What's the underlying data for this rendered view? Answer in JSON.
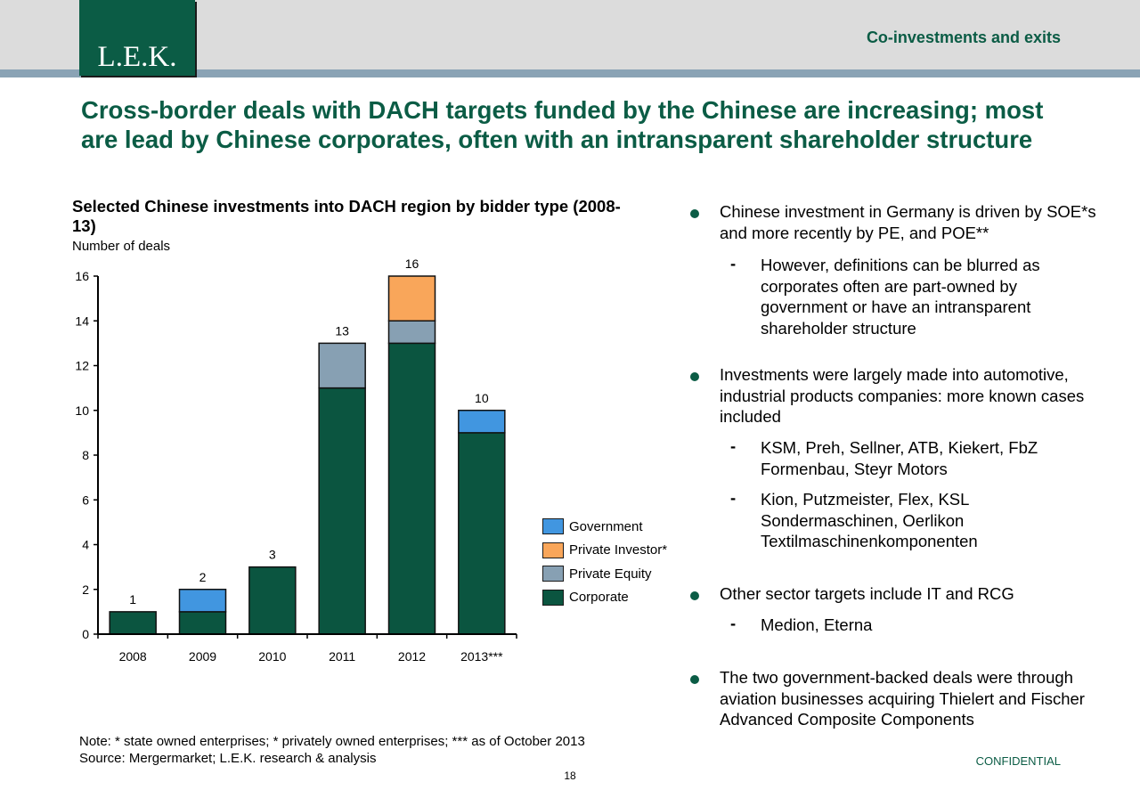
{
  "header": {
    "logo": "L.E.K.",
    "section_title": "Co-investments and exits"
  },
  "headline": "Cross-border deals with DACH targets funded by the Chinese are increasing; most are lead by Chinese corporates, often with an intransparent shareholder structure",
  "chart_data": {
    "type": "bar",
    "stacked": true,
    "title": "Selected Chinese investments into DACH region by bidder type (2008-13)",
    "ylabel": "Number of deals",
    "xlabel": "",
    "categories": [
      "2008",
      "2009",
      "2010",
      "2011",
      "2012",
      "2013***"
    ],
    "series": [
      {
        "name": "Corporate",
        "color": "#0b5540",
        "values": [
          1,
          1,
          3,
          11,
          13,
          9
        ]
      },
      {
        "name": "Private Equity",
        "color": "#87a0b3",
        "values": [
          0,
          0,
          0,
          2,
          1,
          0
        ]
      },
      {
        "name": "Private Investor*",
        "color": "#f9a65a",
        "values": [
          0,
          0,
          0,
          0,
          2,
          0
        ]
      },
      {
        "name": "Government",
        "color": "#4196e0",
        "values": [
          0,
          1,
          0,
          0,
          0,
          1
        ]
      }
    ],
    "totals": [
      1,
      2,
      3,
      13,
      16,
      10
    ],
    "ylim": [
      0,
      16
    ],
    "yticks": [
      0,
      2,
      4,
      6,
      8,
      10,
      12,
      14,
      16
    ],
    "legend_order": [
      "Government",
      "Private Investor*",
      "Private Equity",
      "Corporate"
    ],
    "legend_position": "right",
    "grid": false
  },
  "bullets": [
    {
      "text": "Chinese investment in Germany is driven by SOE*s and more recently by PE, and POE**",
      "subs": [
        "However, definitions can be blurred as corporates often are part-owned by government or have an intransparent shareholder structure"
      ]
    },
    {
      "text": "Investments were largely made into automotive, industrial  products companies: more known cases included",
      "subs": [
        "KSM, Preh, Sellner, ATB, Kiekert, FbZ Formenbau, Steyr Motors",
        "Kion, Putzmeister, Flex, KSL Sondermaschinen, Oerlikon Textilmaschinenkomponenten"
      ]
    },
    {
      "text": "Other sector targets include IT and RCG",
      "subs": [
        "Medion, Eterna"
      ]
    },
    {
      "text": "The two government-backed deals were through aviation businesses acquiring Thielert and Fischer Advanced Composite Components",
      "subs": []
    }
  ],
  "footer": {
    "note": "Note: * state owned enterprises; * privately owned enterprises; *** as of October 2013",
    "source": "Source: Mergermarket; L.E.K. research & analysis",
    "confidential": "CONFIDENTIAL",
    "page_number": "18"
  }
}
